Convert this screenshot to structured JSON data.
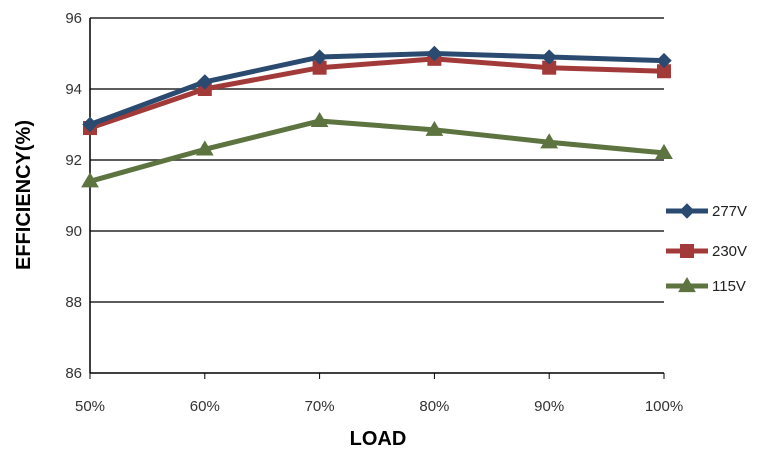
{
  "chart_data": {
    "type": "line",
    "title": "",
    "xlabel": "LOAD",
    "ylabel": "EFFICIENCY(%)",
    "categories": [
      "50%",
      "60%",
      "70%",
      "80%",
      "90%",
      "100%"
    ],
    "ylim": [
      86,
      96
    ],
    "yticks": [
      "86",
      "88",
      "90",
      "92",
      "94",
      "96"
    ],
    "grid": true,
    "legend_position": "right",
    "series": [
      {
        "name": "277V",
        "color": "#2a4a70",
        "marker": "diamond",
        "values": [
          93.0,
          94.2,
          94.9,
          95.0,
          94.9,
          94.8
        ]
      },
      {
        "name": "230V",
        "color": "#a33a3a",
        "marker": "square",
        "values": [
          92.9,
          94.0,
          94.6,
          94.85,
          94.6,
          94.5
        ]
      },
      {
        "name": "115V",
        "color": "#5d7340",
        "marker": "triangle",
        "values": [
          91.4,
          92.3,
          93.1,
          92.85,
          92.5,
          92.2
        ]
      }
    ]
  }
}
